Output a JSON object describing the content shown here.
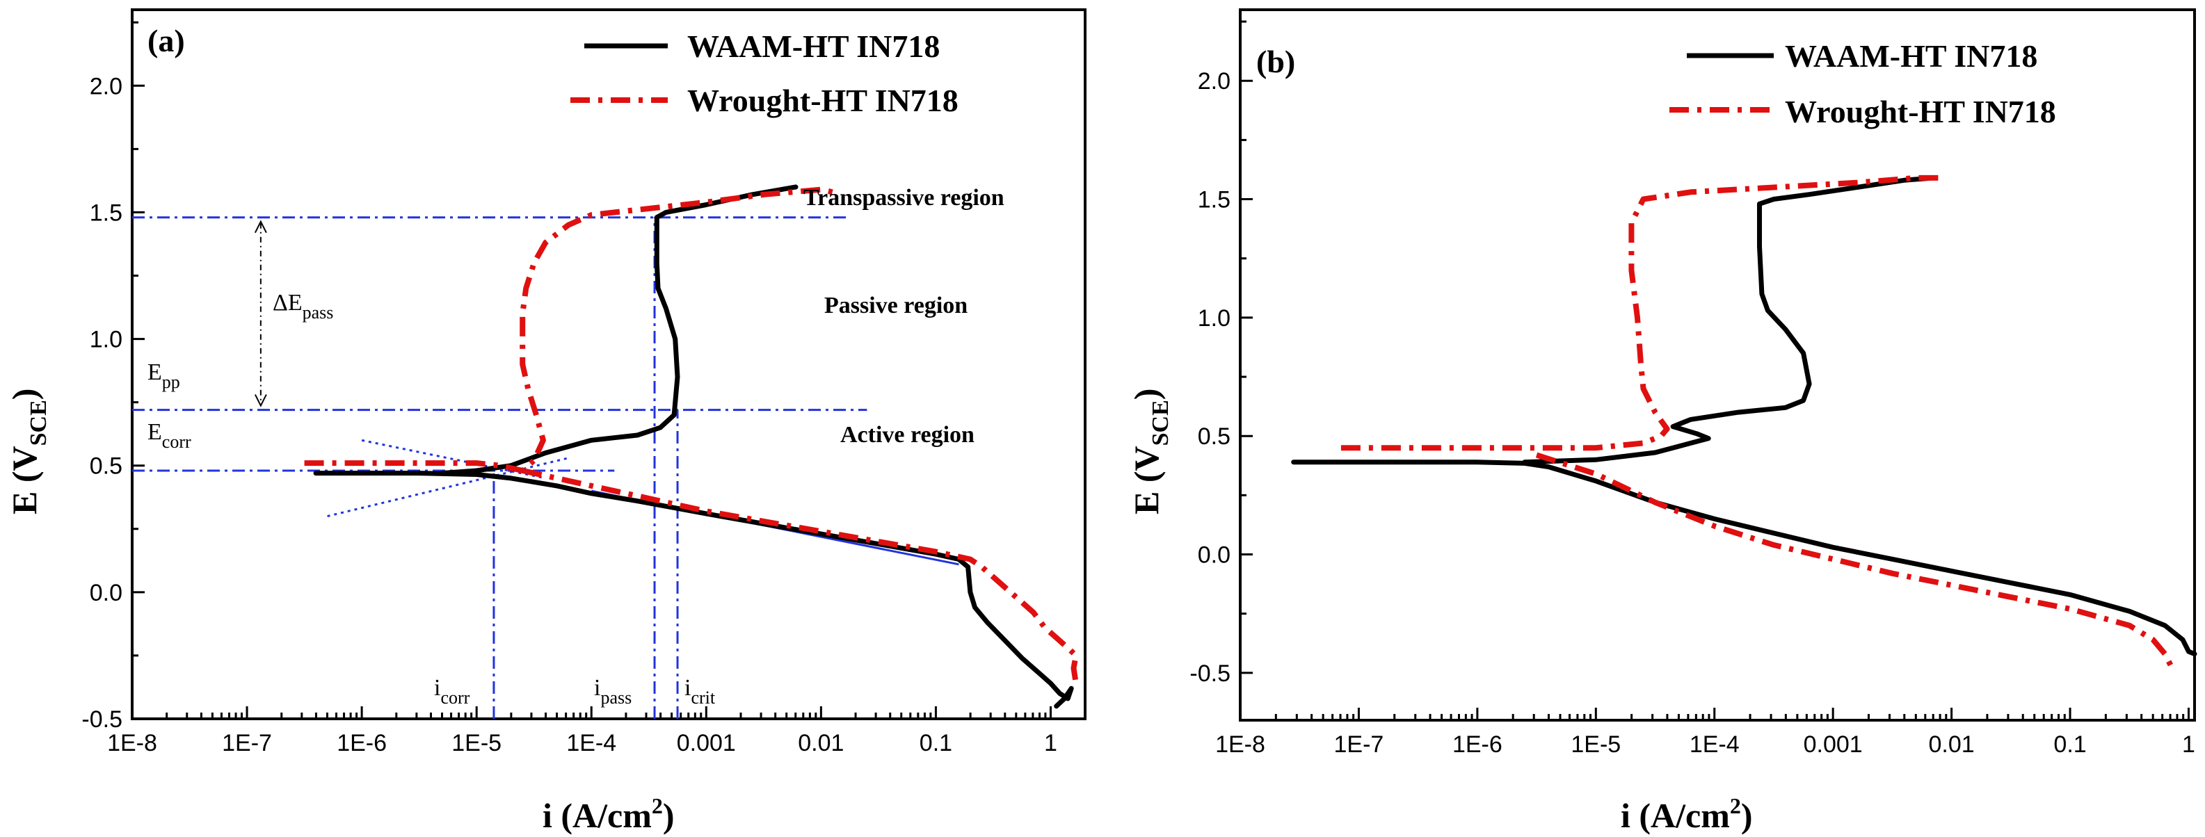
{
  "chart_data": [
    {
      "type": "line",
      "panel_label": "(a)",
      "xlabel": "i (A/cm",
      "xlabel_sup": "2",
      "xlabel_tail": ")",
      "ylabel": "E (V",
      "ylabel_sub": "SCE",
      "ylabel_tail": ")",
      "x_scale": "log",
      "xlim_exp": [
        -8,
        0.3
      ],
      "ylim": [
        -0.5,
        2.3
      ],
      "x_ticks": [
        {
          "exp": -8,
          "label": "1E-8"
        },
        {
          "exp": -7,
          "label": "1E-7"
        },
        {
          "exp": -6,
          "label": "1E-6"
        },
        {
          "exp": -5,
          "label": "1E-5"
        },
        {
          "exp": -4,
          "label": "1E-4"
        },
        {
          "exp": -3,
          "label": "0.001"
        },
        {
          "exp": -2,
          "label": "0.01"
        },
        {
          "exp": -1,
          "label": "0.1"
        },
        {
          "exp": 0,
          "label": "1"
        }
      ],
      "y_ticks": [
        {
          "v": -0.5,
          "label": "-0.5"
        },
        {
          "v": 0.0,
          "label": "0.0"
        },
        {
          "v": 0.5,
          "label": "0.5"
        },
        {
          "v": 1.0,
          "label": "1.0"
        },
        {
          "v": 1.5,
          "label": "1.5"
        },
        {
          "v": 2.0,
          "label": "2.0"
        }
      ],
      "legend": [
        {
          "name": "WAAM-HT IN718",
          "style": "solid",
          "color": "#000000"
        },
        {
          "name": "Wrought-HT IN718",
          "style": "dashdot",
          "color": "#e01010"
        }
      ],
      "series": [
        {
          "name": "WAAM-HT IN718",
          "points": [
            [
              -6.4,
              0.47
            ],
            [
              -6.0,
              0.47
            ],
            [
              -5.5,
              0.47
            ],
            [
              -5.0,
              0.465
            ],
            [
              -4.7,
              0.45
            ],
            [
              -4.3,
              0.42
            ],
            [
              -4.0,
              0.39
            ],
            [
              -3.6,
              0.36
            ],
            [
              -3.0,
              0.31
            ],
            [
              -2.5,
              0.27
            ],
            [
              -2.0,
              0.23
            ],
            [
              -1.5,
              0.19
            ],
            [
              -1.0,
              0.15
            ],
            [
              -0.8,
              0.13
            ],
            [
              -0.72,
              0.1
            ],
            [
              -0.7,
              0.0
            ],
            [
              -0.66,
              -0.06
            ],
            [
              -0.55,
              -0.12
            ],
            [
              -0.4,
              -0.19
            ],
            [
              -0.25,
              -0.26
            ],
            [
              -0.1,
              -0.32
            ],
            [
              0.0,
              -0.36
            ],
            [
              0.08,
              -0.4
            ],
            [
              0.15,
              -0.42
            ],
            [
              0.18,
              -0.38
            ],
            [
              0.12,
              -0.42
            ],
            [
              0.05,
              -0.45
            ]
          ]
        },
        {
          "name": "WAAM-HT IN718 (anodic)",
          "points": [
            [
              -5.3,
              0.47
            ],
            [
              -5.0,
              0.48
            ],
            [
              -4.7,
              0.5
            ],
            [
              -4.4,
              0.55
            ],
            [
              -4.0,
              0.6
            ],
            [
              -3.6,
              0.62
            ],
            [
              -3.4,
              0.65
            ],
            [
              -3.28,
              0.7
            ],
            [
              -3.25,
              0.85
            ],
            [
              -3.27,
              1.0
            ],
            [
              -3.35,
              1.12
            ],
            [
              -3.42,
              1.2
            ],
            [
              -3.43,
              1.3
            ],
            [
              -3.43,
              1.48
            ],
            [
              -3.35,
              1.5
            ],
            [
              -3.0,
              1.53
            ],
            [
              -2.6,
              1.57
            ],
            [
              -2.22,
              1.6
            ]
          ]
        },
        {
          "name": "Wrought-HT IN718",
          "points": [
            [
              -6.5,
              0.51
            ],
            [
              -6.0,
              0.51
            ],
            [
              -5.5,
              0.51
            ],
            [
              -5.0,
              0.51
            ],
            [
              -4.8,
              0.5
            ],
            [
              -4.6,
              0.48
            ],
            [
              -4.5,
              0.52
            ],
            [
              -4.42,
              0.6
            ],
            [
              -4.48,
              0.7
            ],
            [
              -4.55,
              0.8
            ],
            [
              -4.6,
              0.9
            ],
            [
              -4.6,
              1.0
            ],
            [
              -4.6,
              1.1
            ],
            [
              -4.57,
              1.2
            ],
            [
              -4.5,
              1.3
            ],
            [
              -4.4,
              1.38
            ],
            [
              -4.2,
              1.45
            ],
            [
              -4.0,
              1.49
            ],
            [
              -3.6,
              1.51
            ],
            [
              -3.0,
              1.54
            ],
            [
              -2.5,
              1.57
            ],
            [
              -2.0,
              1.59
            ],
            [
              -1.9,
              1.58
            ]
          ]
        },
        {
          "name": "Wrought-HT IN718 (cathodic)",
          "points": [
            [
              -4.6,
              0.48
            ],
            [
              -4.2,
              0.44
            ],
            [
              -3.8,
              0.4
            ],
            [
              -3.4,
              0.36
            ],
            [
              -3.0,
              0.32
            ],
            [
              -2.5,
              0.28
            ],
            [
              -2.0,
              0.24
            ],
            [
              -1.5,
              0.2
            ],
            [
              -1.0,
              0.16
            ],
            [
              -0.7,
              0.13
            ],
            [
              -0.6,
              0.1
            ],
            [
              -0.45,
              0.04
            ],
            [
              -0.3,
              -0.02
            ],
            [
              -0.15,
              -0.08
            ],
            [
              -0.05,
              -0.14
            ],
            [
              0.05,
              -0.18
            ],
            [
              0.15,
              -0.22
            ],
            [
              0.22,
              -0.25
            ],
            [
              0.2,
              -0.3
            ],
            [
              0.22,
              -0.36
            ]
          ]
        }
      ],
      "annotations": {
        "transpassive": "Transpassive region",
        "passive": "Passive region",
        "active": "Active region",
        "delta_e_pass": "ΔE",
        "delta_e_pass_sub": "pass",
        "epp": "E",
        "epp_sub": "pp",
        "ecorr": "E",
        "ecorr_sub": "corr",
        "icorr": "i",
        "icorr_sub": "corr",
        "ipass": "i",
        "ipass_sub": "pass",
        "icrit": "i",
        "icrit_sub": "crit"
      },
      "guides": {
        "e_transpassive": 1.48,
        "e_pp": 0.72,
        "e_corr": 0.48,
        "log_i_corr": -4.85,
        "log_i_pass": -3.45,
        "log_i_crit": -3.25
      }
    },
    {
      "type": "line",
      "panel_label": "(b)",
      "xlabel": "i (A/cm",
      "xlabel_sup": "2",
      "xlabel_tail": ")",
      "ylabel": "E (V",
      "ylabel_sub": "SCE",
      "ylabel_tail": ")",
      "x_scale": "log",
      "xlim_exp": [
        -8,
        0.05
      ],
      "ylim": [
        -0.7,
        2.3
      ],
      "x_ticks": [
        {
          "exp": -8,
          "label": "1E-8"
        },
        {
          "exp": -7,
          "label": "1E-7"
        },
        {
          "exp": -6,
          "label": "1E-6"
        },
        {
          "exp": -5,
          "label": "1E-5"
        },
        {
          "exp": -4,
          "label": "1E-4"
        },
        {
          "exp": -3,
          "label": "0.001"
        },
        {
          "exp": -2,
          "label": "0.01"
        },
        {
          "exp": -1,
          "label": "0.1"
        },
        {
          "exp": 0,
          "label": "1"
        }
      ],
      "y_ticks": [
        {
          "v": -0.5,
          "label": "-0.5"
        },
        {
          "v": 0.0,
          "label": "0.0"
        },
        {
          "v": 0.5,
          "label": "0.5"
        },
        {
          "v": 1.0,
          "label": "1.0"
        },
        {
          "v": 1.5,
          "label": "1.5"
        },
        {
          "v": 2.0,
          "label": "2.0"
        }
      ],
      "legend": [
        {
          "name": "WAAM-HT IN718",
          "style": "solid",
          "color": "#000000"
        },
        {
          "name": "Wrought-HT IN718",
          "style": "dashdot",
          "color": "#e01010"
        }
      ],
      "series": [
        {
          "name": "WAAM-HT IN718",
          "points": [
            [
              -7.55,
              0.39
            ],
            [
              -7.0,
              0.39
            ],
            [
              -6.5,
              0.39
            ],
            [
              -6.0,
              0.39
            ],
            [
              -5.6,
              0.385
            ],
            [
              -5.4,
              0.37
            ],
            [
              -5.0,
              0.31
            ],
            [
              -4.5,
              0.22
            ],
            [
              -4.0,
              0.15
            ],
            [
              -3.5,
              0.09
            ],
            [
              -3.0,
              0.03
            ],
            [
              -2.5,
              -0.02
            ],
            [
              -2.0,
              -0.07
            ],
            [
              -1.5,
              -0.12
            ],
            [
              -1.0,
              -0.17
            ],
            [
              -0.5,
              -0.24
            ],
            [
              -0.2,
              -0.3
            ],
            [
              -0.05,
              -0.36
            ],
            [
              0.0,
              -0.41
            ],
            [
              0.05,
              -0.42
            ]
          ]
        },
        {
          "name": "WAAM-HT IN718 (anodic)",
          "points": [
            [
              -5.6,
              0.39
            ],
            [
              -5.0,
              0.4
            ],
            [
              -4.5,
              0.43
            ],
            [
              -4.2,
              0.47
            ],
            [
              -4.05,
              0.49
            ],
            [
              -4.15,
              0.51
            ],
            [
              -4.35,
              0.54
            ],
            [
              -4.2,
              0.57
            ],
            [
              -3.8,
              0.6
            ],
            [
              -3.4,
              0.62
            ],
            [
              -3.25,
              0.65
            ],
            [
              -3.2,
              0.72
            ],
            [
              -3.25,
              0.85
            ],
            [
              -3.4,
              0.95
            ],
            [
              -3.55,
              1.03
            ],
            [
              -3.6,
              1.1
            ],
            [
              -3.62,
              1.3
            ],
            [
              -3.62,
              1.48
            ],
            [
              -3.5,
              1.5
            ],
            [
              -3.2,
              1.52
            ],
            [
              -2.8,
              1.55
            ],
            [
              -2.4,
              1.58
            ],
            [
              -2.15,
              1.59
            ]
          ]
        },
        {
          "name": "Wrought-HT IN718",
          "points": [
            [
              -7.15,
              0.45
            ],
            [
              -6.5,
              0.45
            ],
            [
              -6.0,
              0.45
            ],
            [
              -5.5,
              0.45
            ],
            [
              -5.0,
              0.45
            ],
            [
              -4.6,
              0.47
            ],
            [
              -4.45,
              0.5
            ],
            [
              -4.4,
              0.53
            ],
            [
              -4.5,
              0.6
            ],
            [
              -4.6,
              0.7
            ],
            [
              -4.62,
              0.8
            ],
            [
              -4.65,
              1.0
            ],
            [
              -4.7,
              1.2
            ],
            [
              -4.7,
              1.4
            ],
            [
              -4.6,
              1.5
            ],
            [
              -4.2,
              1.53
            ],
            [
              -3.5,
              1.55
            ],
            [
              -2.8,
              1.57
            ],
            [
              -2.3,
              1.59
            ],
            [
              -2.1,
              1.59
            ]
          ]
        },
        {
          "name": "Wrought-HT IN718 (cathodic)",
          "points": [
            [
              -5.5,
              0.42
            ],
            [
              -5.0,
              0.34
            ],
            [
              -4.5,
              0.22
            ],
            [
              -4.0,
              0.12
            ],
            [
              -3.5,
              0.04
            ],
            [
              -3.0,
              -0.02
            ],
            [
              -2.5,
              -0.08
            ],
            [
              -2.0,
              -0.13
            ],
            [
              -1.5,
              -0.18
            ],
            [
              -1.0,
              -0.23
            ],
            [
              -0.5,
              -0.3
            ],
            [
              -0.3,
              -0.36
            ],
            [
              -0.2,
              -0.42
            ],
            [
              -0.15,
              -0.47
            ]
          ]
        }
      ]
    }
  ]
}
